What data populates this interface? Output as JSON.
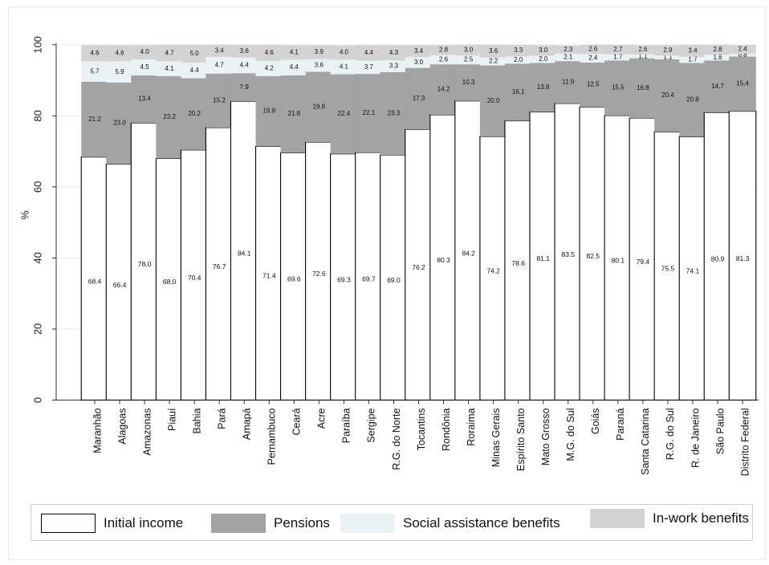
{
  "chart_data": {
    "type": "bar",
    "stacked": true,
    "ylabel": "%",
    "ylim": [
      0,
      100
    ],
    "yticks": [
      0,
      20,
      40,
      60,
      80,
      100
    ],
    "grid": true,
    "legend_position": "bottom",
    "categories": [
      "Maranhão",
      "Alagoas",
      "Amazonas",
      "Piauí",
      "Bahia",
      "Pará",
      "Amapá",
      "Pernambuco",
      "Ceará",
      "Acre",
      "Paraíba",
      "Sergipe",
      "R.G. do Norte",
      "Tocantins",
      "Rondônia",
      "Roraima",
      "Minas Gerais",
      "Espírito Santo",
      "Mato Grosso",
      "M.G. do Sul",
      "Goiás",
      "Paraná",
      "Santa Catarina",
      "R.G. do Sul",
      "R. de Janeiro",
      "São Paulo",
      "Distrito Federal"
    ],
    "series": [
      {
        "name": "Initial income",
        "color": "#ffffff",
        "border": "#000000",
        "values": [
          68.4,
          66.4,
          78.0,
          68.0,
          70.4,
          76.7,
          84.1,
          71.4,
          69.6,
          72.6,
          69.3,
          69.7,
          69.0,
          76.2,
          80.3,
          84.2,
          74.2,
          78.6,
          81.1,
          83.5,
          82.5,
          80.1,
          79.4,
          75.5,
          74.1,
          80.9,
          81.3
        ],
        "labels": [
          "68.4",
          "66.4",
          "78.0",
          "68.0",
          "70.4",
          "76.7",
          "84.1",
          "71.4",
          "69.6",
          "72.6",
          "69.3",
          "69.7",
          "69.0",
          "76.2",
          "80.3",
          "84.2",
          "74.2",
          "78.6",
          "81.1",
          "83.5",
          "82.5",
          "80.1",
          "79.4",
          "75.5",
          "74.1",
          "80.9",
          "81.3"
        ]
      },
      {
        "name": "Pensions",
        "color": "#a3a3a3",
        "border": "#a3a3a3",
        "values": [
          21.2,
          23.0,
          13.4,
          23.2,
          20.2,
          15.2,
          7.9,
          19.8,
          21.8,
          19.8,
          22.4,
          22.1,
          23.3,
          17.3,
          14.2,
          10.3,
          20.0,
          16.1,
          13.8,
          11.9,
          12.5,
          15.5,
          16.8,
          20.4,
          20.8,
          14.7,
          15.4
        ],
        "labels": [
          "21.2",
          "23.0",
          "13.4",
          "23.2",
          "20.2",
          "15.2",
          "7.9",
          "19.8",
          "21.8",
          "19.8",
          "22.4",
          "22.1",
          "23.3",
          "17.3",
          "14.2",
          "10.3",
          "20.0",
          "16.1",
          "13.8",
          "11.9",
          "12.5",
          "15.5",
          "16.8",
          "20.4",
          "20.8",
          "14.7",
          "15.4"
        ]
      },
      {
        "name": "Social assistance benefits",
        "color": "#eaf2f5",
        "border": "#eaf2f5",
        "values": [
          5.7,
          5.9,
          4.5,
          4.1,
          4.4,
          4.7,
          4.4,
          4.2,
          4.4,
          3.6,
          4.1,
          3.7,
          3.3,
          3.0,
          2.6,
          2.5,
          2.2,
          2.0,
          2.0,
          2.1,
          2.4,
          1.7,
          1.1,
          1.1,
          1.7,
          1.6,
          0.8
        ],
        "labels": [
          "5.7",
          "5.9",
          "4.5",
          "4.1",
          "4.4",
          "4.7",
          "4.4",
          "4.2",
          "4.4",
          "3.6",
          "4.1",
          "3.7",
          "3.3",
          "3.0",
          "2.6",
          "2.5",
          "2.2",
          "2.0",
          "2.0",
          "2.1",
          "2.4",
          "1.7",
          "1.1",
          "1.1",
          "1.7",
          "1.6",
          "0.8"
        ]
      },
      {
        "name": "In-work benefits",
        "color": "#d3d3d3",
        "border": "#d3d3d3",
        "values": [
          4.6,
          4.6,
          4.0,
          4.7,
          5.0,
          3.4,
          3.6,
          4.6,
          4.1,
          3.9,
          4.0,
          4.4,
          4.3,
          3.4,
          2.8,
          3.0,
          3.6,
          3.3,
          3.0,
          2.3,
          2.6,
          2.7,
          2.6,
          2.9,
          3.4,
          2.8,
          2.4
        ],
        "labels": [
          "4.6",
          "4.6",
          "4.0",
          "4.7",
          "5.0",
          "3.4",
          "3.6",
          "4.6",
          "4.1",
          "3.9",
          "4.0",
          "4.4",
          "4.3",
          "3.4",
          "2.8",
          "3.0",
          "3.6",
          "3.3",
          "3.0",
          "2.3",
          "2.6",
          "2.7",
          "2.6",
          "2.9",
          "3.4",
          "2.8",
          "2.4"
        ]
      }
    ]
  }
}
